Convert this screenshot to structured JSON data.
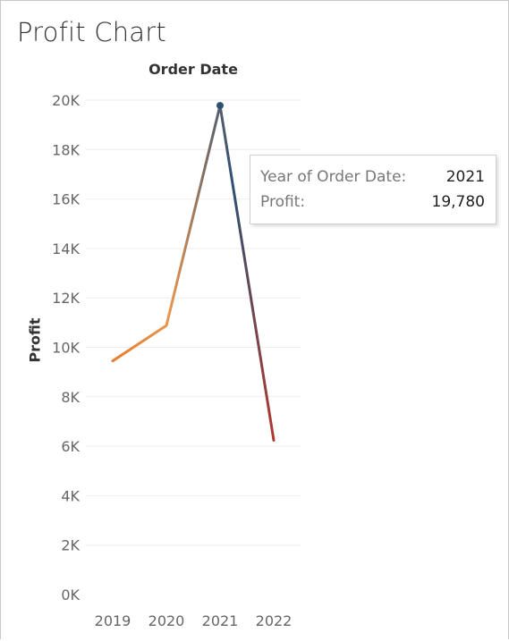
{
  "title": "Profit Chart",
  "column_header": "Order Date",
  "tooltip": {
    "row1_label": "Year of Order Date:",
    "row1_value": "2021",
    "row2_label": "Profit:",
    "row2_value": "19,780"
  },
  "colors": {
    "line_start": "#e87d2e",
    "line_mid": "#e8954f",
    "line_peak": "#2e5073",
    "line_end": "#b03a2e",
    "grid": "#eeeeee"
  },
  "chart_data": {
    "type": "line",
    "title": "Profit Chart",
    "xlabel": "Order Date",
    "ylabel": "Profit",
    "categories": [
      "2019",
      "2020",
      "2021",
      "2022"
    ],
    "series": [
      {
        "values": [
          9450,
          10880,
          19780,
          6240
        ]
      }
    ],
    "ylim": [
      0,
      20000
    ],
    "yticks": [
      0,
      2000,
      4000,
      6000,
      8000,
      10000,
      12000,
      14000,
      16000,
      18000,
      20000
    ],
    "ytick_labels": [
      "0K",
      "2K",
      "4K",
      "6K",
      "8K",
      "10K",
      "12K",
      "14K",
      "16K",
      "18K",
      "20K"
    ],
    "highlighted_point": {
      "category": "2021",
      "value": 19780
    },
    "grid": true,
    "legend": "none"
  }
}
